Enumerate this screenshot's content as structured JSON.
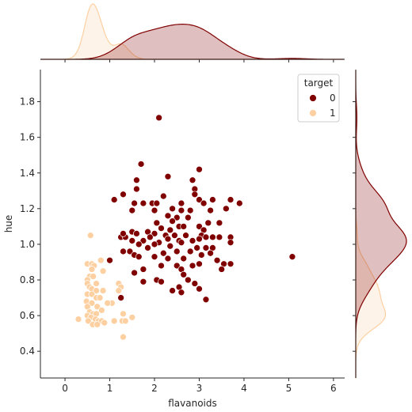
{
  "chart_data": {
    "type": "scatter",
    "kind": "jointplot",
    "xlabel": "flavanoids",
    "ylabel": "hue",
    "xlim": [
      -0.55,
      6.25
    ],
    "ylim": [
      0.25,
      1.98
    ],
    "x_ticks": [
      0,
      1,
      2,
      3,
      4,
      5,
      6
    ],
    "y_ticks": [
      0.4,
      0.6,
      0.8,
      1.0,
      1.2,
      1.4,
      1.6,
      1.8
    ],
    "legend": {
      "title": "target",
      "placement": "top-right",
      "entries": [
        "0",
        "1"
      ]
    },
    "series": [
      {
        "label": "0",
        "color": "#800000",
        "points": [
          [
            2.1,
            1.71
          ],
          [
            3.0,
            1.42
          ],
          [
            1.7,
            1.45
          ],
          [
            2.3,
            1.38
          ],
          [
            2.85,
            1.36
          ],
          [
            1.6,
            1.36
          ],
          [
            2.9,
            1.31
          ],
          [
            1.6,
            1.31
          ],
          [
            1.3,
            1.28
          ],
          [
            2.9,
            1.28
          ],
          [
            1.1,
            1.25
          ],
          [
            3.0,
            1.25
          ],
          [
            3.3,
            1.25
          ],
          [
            3.7,
            1.25
          ],
          [
            2.2,
            1.27
          ],
          [
            3.1,
            1.23
          ],
          [
            3.9,
            1.23
          ],
          [
            1.55,
            1.23
          ],
          [
            1.75,
            1.23
          ],
          [
            1.95,
            1.23
          ],
          [
            2.05,
            1.23
          ],
          [
            2.6,
            1.23
          ],
          [
            2.4,
            1.2
          ],
          [
            3.6,
            1.2
          ],
          [
            1.5,
            1.19
          ],
          [
            2.0,
            1.19
          ],
          [
            2.6,
            1.19
          ],
          [
            3.25,
            1.19
          ],
          [
            2.8,
            1.19
          ],
          [
            2.3,
            1.16
          ],
          [
            2.5,
            1.15
          ],
          [
            2.75,
            1.15
          ],
          [
            3.45,
            1.12
          ],
          [
            3.2,
            1.12
          ],
          [
            2.05,
            1.12
          ],
          [
            2.15,
            1.09
          ],
          [
            2.35,
            1.08
          ],
          [
            2.55,
            1.1
          ],
          [
            2.65,
            1.1
          ],
          [
            3.0,
            1.1
          ],
          [
            3.1,
            1.08
          ],
          [
            1.5,
            1.07
          ],
          [
            1.6,
            1.06
          ],
          [
            1.85,
            1.07
          ],
          [
            2.0,
            1.06
          ],
          [
            2.25,
            1.05
          ],
          [
            2.45,
            1.05
          ],
          [
            2.7,
            1.05
          ],
          [
            3.05,
            1.05
          ],
          [
            3.15,
            1.04
          ],
          [
            3.3,
            1.04
          ],
          [
            3.45,
            1.04
          ],
          [
            3.7,
            1.04
          ],
          [
            1.25,
            1.04
          ],
          [
            1.35,
            1.04
          ],
          [
            1.9,
            1.04
          ],
          [
            2.3,
            1.03
          ],
          [
            2.55,
            1.02
          ],
          [
            2.85,
            1.02
          ],
          [
            3.0,
            1.03
          ],
          [
            1.5,
            1.02
          ],
          [
            1.75,
            1.02
          ],
          [
            2.1,
            1.01
          ],
          [
            2.6,
            1.01
          ],
          [
            3.7,
            1.01
          ],
          [
            1.65,
            1.0
          ],
          [
            2.0,
            1.0
          ],
          [
            2.35,
            0.99
          ],
          [
            2.95,
            0.98
          ],
          [
            3.15,
            0.98
          ],
          [
            3.3,
            0.98
          ],
          [
            1.85,
            0.98
          ],
          [
            1.3,
            0.96
          ],
          [
            1.45,
            0.96
          ],
          [
            2.5,
            0.96
          ],
          [
            2.8,
            0.96
          ],
          [
            2.2,
            0.95
          ],
          [
            3.05,
            0.94
          ],
          [
            3.25,
            0.95
          ],
          [
            1.55,
            0.94
          ],
          [
            1.65,
            0.93
          ],
          [
            2.0,
            0.93
          ],
          [
            2.65,
            0.92
          ],
          [
            2.3,
            0.92
          ],
          [
            3.4,
            0.91
          ],
          [
            1.0,
            0.91
          ],
          [
            3.7,
            0.89
          ],
          [
            2.15,
            0.88
          ],
          [
            2.5,
            0.88
          ],
          [
            2.85,
            0.88
          ],
          [
            3.0,
            0.89
          ],
          [
            3.55,
            0.89
          ],
          [
            1.75,
            0.86
          ],
          [
            3.5,
            0.86
          ],
          [
            2.6,
            0.86
          ],
          [
            2.65,
            0.83
          ],
          [
            1.55,
            0.84
          ],
          [
            2.05,
            0.8
          ],
          [
            2.15,
            0.79
          ],
          [
            2.75,
            0.8
          ],
          [
            1.75,
            0.79
          ],
          [
            2.9,
            0.78
          ],
          [
            2.55,
            0.76
          ],
          [
            3.0,
            0.75
          ],
          [
            2.4,
            0.74
          ],
          [
            2.6,
            0.73
          ],
          [
            1.25,
            0.7
          ],
          [
            3.15,
            0.69
          ],
          [
            5.08,
            0.93
          ],
          [
            1.3,
            1.06
          ],
          [
            2.4,
            1.13
          ]
        ]
      },
      {
        "label": "1",
        "color": "#fdd0a2",
        "points": [
          [
            0.57,
            1.05
          ],
          [
            0.8,
            0.91
          ],
          [
            0.5,
            0.89
          ],
          [
            0.6,
            0.89
          ],
          [
            0.65,
            0.88
          ],
          [
            0.6,
            0.86
          ],
          [
            0.85,
            0.85
          ],
          [
            0.55,
            0.82
          ],
          [
            0.63,
            0.82
          ],
          [
            0.5,
            0.8
          ],
          [
            0.5,
            0.78
          ],
          [
            0.7,
            0.78
          ],
          [
            1.2,
            0.78
          ],
          [
            0.55,
            0.76
          ],
          [
            0.6,
            0.75
          ],
          [
            1.25,
            0.76
          ],
          [
            0.7,
            0.74
          ],
          [
            0.85,
            0.74
          ],
          [
            1.2,
            0.74
          ],
          [
            0.5,
            0.72
          ],
          [
            0.6,
            0.72
          ],
          [
            0.7,
            0.7
          ],
          [
            0.78,
            0.7
          ],
          [
            0.48,
            0.68
          ],
          [
            0.6,
            0.67
          ],
          [
            1.05,
            0.67
          ],
          [
            0.5,
            0.65
          ],
          [
            0.72,
            0.65
          ],
          [
            0.95,
            0.67
          ],
          [
            0.82,
            0.63
          ],
          [
            0.55,
            0.62
          ],
          [
            0.63,
            0.61
          ],
          [
            0.7,
            0.61
          ],
          [
            0.5,
            0.6
          ],
          [
            1.3,
            0.61
          ],
          [
            1.5,
            0.59
          ],
          [
            0.58,
            0.59
          ],
          [
            0.68,
            0.58
          ],
          [
            0.52,
            0.57
          ],
          [
            0.75,
            0.57
          ],
          [
            0.82,
            0.57
          ],
          [
            1.1,
            0.57
          ],
          [
            1.28,
            0.57
          ],
          [
            1.35,
            0.57
          ],
          [
            0.3,
            0.58
          ],
          [
            0.62,
            0.55
          ],
          [
            0.72,
            0.55
          ],
          [
            0.88,
            0.56
          ],
          [
            1.3,
            0.48
          ]
        ]
      }
    ],
    "marginals": {
      "x_top": {
        "type": "kde",
        "series": [
          "0",
          "1"
        ]
      },
      "y_right": {
        "type": "kde",
        "series": [
          "0",
          "1"
        ]
      }
    }
  }
}
